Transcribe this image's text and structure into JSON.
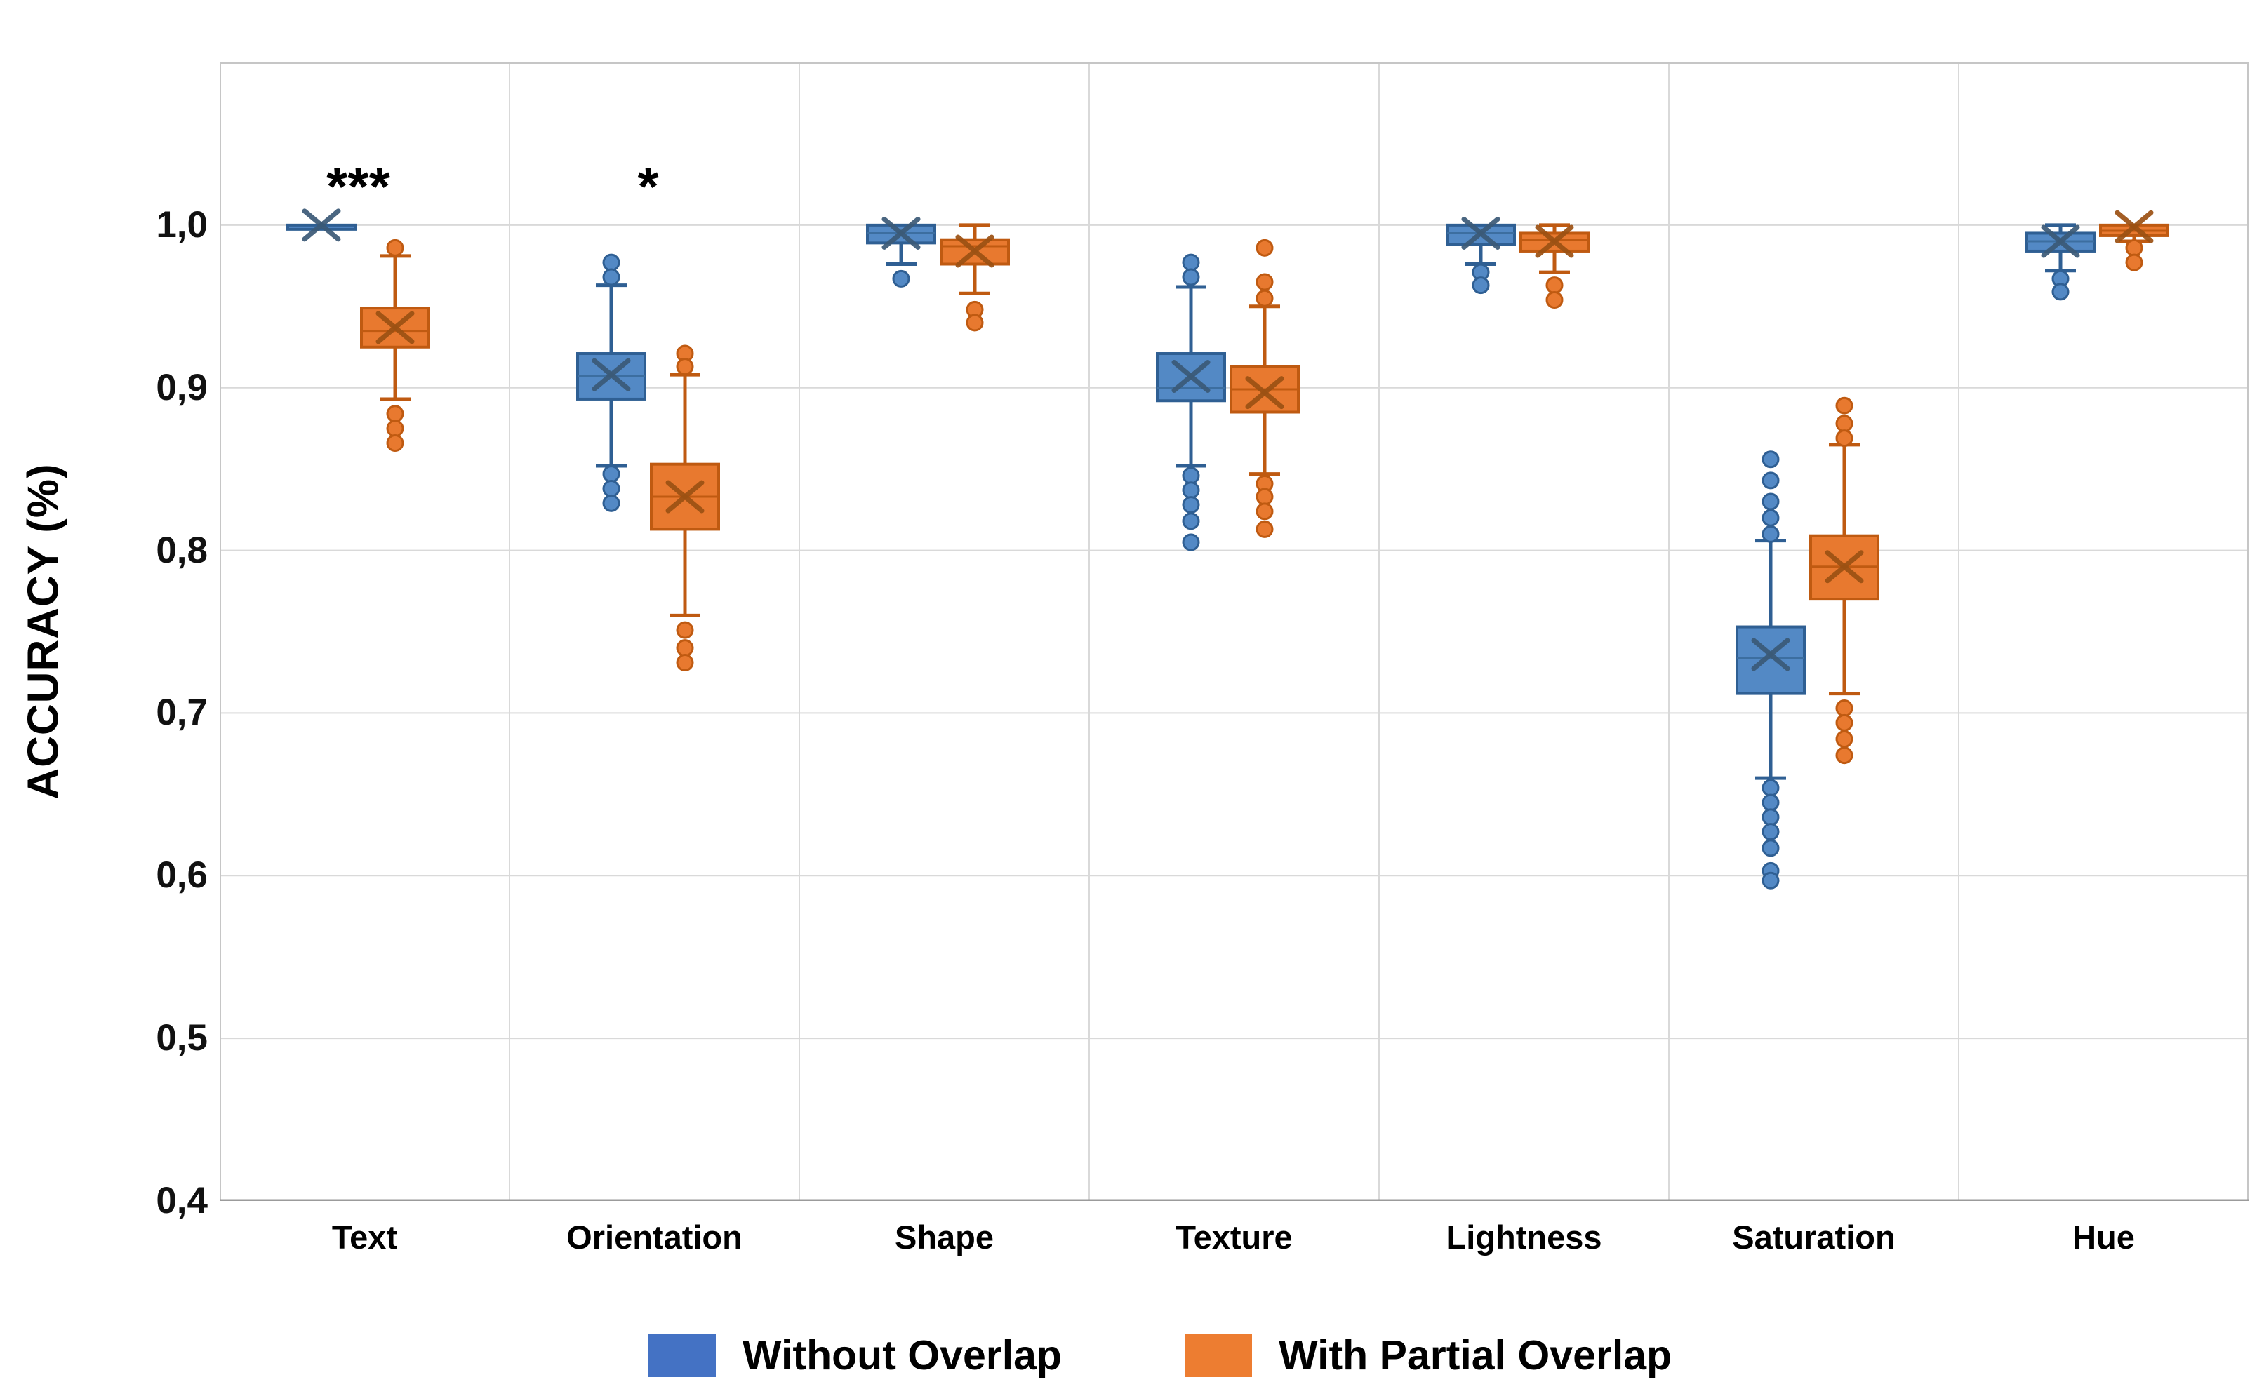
{
  "figure": {
    "background_color": "#ffffff",
    "grid_color": "#d9d9d9",
    "plot_border_color": "#c6c6c6",
    "axis_line_color": "#9b9b9b"
  },
  "chart_data": {
    "type": "boxplot",
    "title": "",
    "xlabel": "",
    "ylabel": "ACCURACY (%)",
    "ylim": [
      0.4,
      1.1
    ],
    "grid": true,
    "legend_position": "bottom",
    "y_ticks": [
      {
        "label": "1,0",
        "value": 1.0
      },
      {
        "label": "0,9",
        "value": 0.9
      },
      {
        "label": "0,8",
        "value": 0.8
      },
      {
        "label": "0,7",
        "value": 0.7
      },
      {
        "label": "0,6",
        "value": 0.6
      },
      {
        "label": "0,5",
        "value": 0.5
      },
      {
        "label": "0,4",
        "value": 0.4
      }
    ],
    "categories": [
      "Text",
      "Orientation",
      "Shape",
      "Texture",
      "Lightness",
      "Saturation",
      "Hue"
    ],
    "annotations": [
      {
        "category_index": 0,
        "text": "***",
        "value": 1.033
      },
      {
        "category_index": 1,
        "text": "*",
        "value": 1.033
      }
    ],
    "series": [
      {
        "name": "Without Overlap",
        "legend_color": "#4472C4",
        "box_fill": "#5389C5",
        "box_border": "#2F5F93",
        "median_color": "#3C6EA0",
        "mean_marker_color": "#3B5A77",
        "boxes": [
          {
            "whisker_low": 1.0,
            "q1": 1.0,
            "median": 1.0,
            "q3": 1.0,
            "whisker_high": 1.0,
            "mean": 1.0,
            "outliers_high": [],
            "outliers_low": []
          },
          {
            "whisker_low": 0.852,
            "q1": 0.893,
            "median": 0.907,
            "q3": 0.921,
            "whisker_high": 0.963,
            "mean": 0.908,
            "outliers_high": [
              0.977,
              0.968
            ],
            "outliers_low": [
              0.847,
              0.838,
              0.829
            ]
          },
          {
            "whisker_low": 0.976,
            "q1": 0.989,
            "median": 0.995,
            "q3": 1.0,
            "whisker_high": 1.0,
            "mean": 0.995,
            "outliers_high": [],
            "outliers_low": [
              0.967
            ]
          },
          {
            "whisker_low": 0.852,
            "q1": 0.892,
            "median": 0.9,
            "q3": 0.921,
            "whisker_high": 0.962,
            "mean": 0.907,
            "outliers_high": [
              0.977,
              0.968
            ],
            "outliers_low": [
              0.846,
              0.837,
              0.828,
              0.818,
              0.805
            ]
          },
          {
            "whisker_low": 0.976,
            "q1": 0.988,
            "median": 0.995,
            "q3": 1.0,
            "whisker_high": 1.0,
            "mean": 0.995,
            "outliers_high": [],
            "outliers_low": [
              0.971,
              0.963
            ]
          },
          {
            "whisker_low": 0.66,
            "q1": 0.712,
            "median": 0.734,
            "q3": 0.753,
            "whisker_high": 0.806,
            "mean": 0.736,
            "outliers_high": [
              0.856,
              0.843,
              0.83,
              0.82,
              0.81
            ],
            "outliers_low": [
              0.654,
              0.645,
              0.636,
              0.627,
              0.617,
              0.603,
              0.597
            ]
          },
          {
            "whisker_low": 0.972,
            "q1": 0.984,
            "median": 0.99,
            "q3": 0.995,
            "whisker_high": 1.0,
            "mean": 0.99,
            "outliers_high": [],
            "outliers_low": [
              0.967,
              0.959
            ]
          }
        ]
      },
      {
        "name": "With Partial Overlap",
        "legend_color": "#ED7D31",
        "box_fill": "#E8792F",
        "box_border": "#BF5A11",
        "median_color": "#C05A11",
        "mean_marker_color": "#9C5113",
        "boxes": [
          {
            "whisker_low": 0.893,
            "q1": 0.925,
            "median": 0.935,
            "q3": 0.949,
            "whisker_high": 0.981,
            "mean": 0.937,
            "outliers_high": [
              0.986
            ],
            "outliers_low": [
              0.884,
              0.875,
              0.866
            ]
          },
          {
            "whisker_low": 0.76,
            "q1": 0.813,
            "median": 0.833,
            "q3": 0.853,
            "whisker_high": 0.908,
            "mean": 0.833,
            "outliers_high": [
              0.921,
              0.913
            ],
            "outliers_low": [
              0.751,
              0.74,
              0.731
            ]
          },
          {
            "whisker_low": 0.958,
            "q1": 0.976,
            "median": 0.987,
            "q3": 0.991,
            "whisker_high": 1.0,
            "mean": 0.984,
            "outliers_high": [],
            "outliers_low": [
              0.948,
              0.94
            ]
          },
          {
            "whisker_low": 0.847,
            "q1": 0.885,
            "median": 0.899,
            "q3": 0.913,
            "whisker_high": 0.95,
            "mean": 0.897,
            "outliers_high": [
              0.986,
              0.965,
              0.955
            ],
            "outliers_low": [
              0.841,
              0.833,
              0.824,
              0.813
            ]
          },
          {
            "whisker_low": 0.971,
            "q1": 0.984,
            "median": 0.991,
            "q3": 0.995,
            "whisker_high": 1.0,
            "mean": 0.99,
            "outliers_high": [],
            "outliers_low": [
              0.963,
              0.954
            ]
          },
          {
            "whisker_low": 0.712,
            "q1": 0.77,
            "median": 0.79,
            "q3": 0.809,
            "whisker_high": 0.865,
            "mean": 0.79,
            "outliers_high": [
              0.889,
              0.878,
              0.869
            ],
            "outliers_low": [
              0.703,
              0.694,
              0.684,
              0.674
            ]
          },
          {
            "whisker_low": 0.99,
            "q1": 0.9935,
            "median": 0.9965,
            "q3": 1.0,
            "whisker_high": 1.0,
            "mean": 0.999,
            "outliers_high": [],
            "outliers_low": [
              0.986,
              0.977
            ]
          }
        ]
      }
    ]
  }
}
